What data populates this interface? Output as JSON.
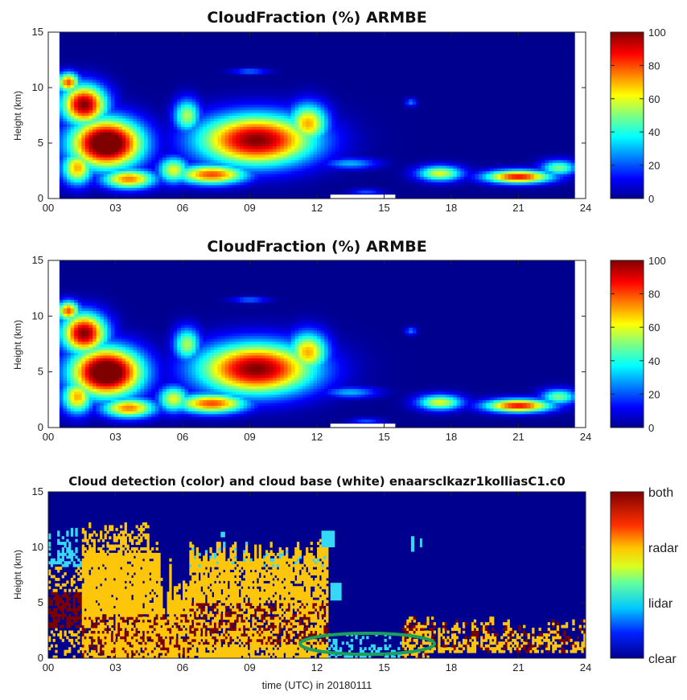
{
  "colors": {
    "clear": "#00008f",
    "lidar": "#35d9f5",
    "radar": "#fdc60b",
    "both": "#7b0000",
    "ellipse": "#1aa05a"
  },
  "chart_data": [
    {
      "type": "heatmap",
      "title": "CloudFraction  (%) ARMBE",
      "xlabel": "",
      "ylabel": "Height (km)",
      "xlim": [
        0,
        24
      ],
      "ylim": [
        0,
        15
      ],
      "xticks": [
        "00",
        "03",
        "06",
        "09",
        "12",
        "15",
        "18",
        "21",
        "24"
      ],
      "yticks": [
        "0",
        "5",
        "10",
        "15"
      ],
      "colorbar": {
        "range": [
          0,
          100
        ],
        "ticks": [
          "0",
          "20",
          "40",
          "60",
          "80",
          "100"
        ],
        "colormap": "jet"
      },
      "cloud_regions": [
        {
          "t_start": 0.5,
          "t_end": 4.5,
          "h_start": 0.5,
          "h_end": 11.5,
          "peak_percent": 100
        },
        {
          "t_start": 6.5,
          "t_end": 12.5,
          "h_start": 1.0,
          "h_end": 9.0,
          "peak_percent": 95
        },
        {
          "t_start": 16.5,
          "t_end": 23.5,
          "h_start": 1.0,
          "h_end": 3.5,
          "peak_percent": 90
        }
      ]
    },
    {
      "type": "heatmap",
      "title": "CloudFraction  (%) ARMBE",
      "xlabel": "",
      "ylabel": "Height (km)",
      "xlim": [
        0,
        24
      ],
      "ylim": [
        0,
        15
      ],
      "xticks": [
        "00",
        "03",
        "06",
        "09",
        "12",
        "15",
        "18",
        "21",
        "24"
      ],
      "yticks": [
        "0",
        "5",
        "10",
        "15"
      ],
      "colorbar": {
        "range": [
          0,
          100
        ],
        "ticks": [
          "0",
          "20",
          "40",
          "60",
          "80",
          "100"
        ],
        "colormap": "jet"
      },
      "cloud_regions": [
        {
          "t_start": 0.5,
          "t_end": 4.5,
          "h_start": 0.5,
          "h_end": 11.5,
          "peak_percent": 100
        },
        {
          "t_start": 6.5,
          "t_end": 12.5,
          "h_start": 1.0,
          "h_end": 9.0,
          "peak_percent": 95
        },
        {
          "t_start": 16.5,
          "t_end": 23.5,
          "h_start": 1.0,
          "h_end": 3.5,
          "peak_percent": 90
        }
      ]
    },
    {
      "type": "heatmap",
      "title": "Cloud detection (color) and cloud base (white) enaarsclkazr1kolliasC1.c0",
      "xlabel": "time (UTC) in 20180111",
      "ylabel": "Height (km)",
      "xlim": [
        0,
        24
      ],
      "ylim": [
        0,
        15
      ],
      "xticks": [
        "00",
        "03",
        "06",
        "09",
        "12",
        "15",
        "18",
        "21",
        "24"
      ],
      "yticks": [
        "0",
        "5",
        "10",
        "15"
      ],
      "colorbar": {
        "categories": [
          "clear",
          "lidar",
          "radar",
          "both"
        ]
      },
      "highlight": {
        "shape": "ellipse",
        "t_center": 14.25,
        "h_center": 1.3,
        "t_radius": 3.0,
        "h_radius": 0.95
      }
    }
  ]
}
